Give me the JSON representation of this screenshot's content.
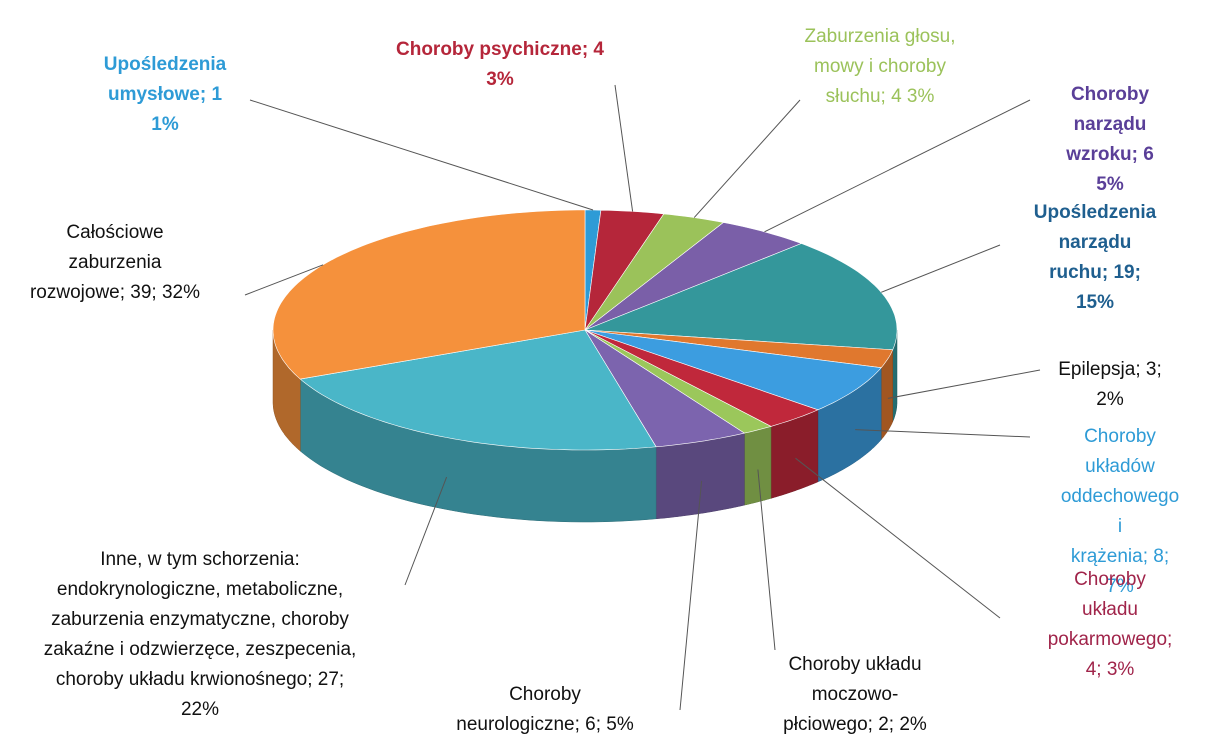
{
  "chart_data": {
    "type": "pie3d",
    "labels": [
      "Upośledzenia\numysłowe; 1\n1%",
      "Choroby psychiczne; 4\n3%",
      "Zaburzenia głosu,\nmowy i choroby\nsłuchu; 4 3%",
      "Choroby narządu\nwzroku; 6\n5%",
      "Upośledzenia\nnarządu ruchu; 19;\n15%",
      "Epilepsja; 3; 2%",
      "Choroby układów\noddechowego i\nkrążenia; 8; 7%",
      "Choroby układu\npokarmowego; 4; 3%",
      "Choroby układu\nmoczowo-\npłciowego; 2; 2%",
      "Choroby\nneurologiczne; 6; 5%",
      "Inne, w tym schorzenia:\nendokrynologiczne, metaboliczne,\nzaburzenia enzymatyczne, choroby\nzakaźne i odzwierzęce, zeszpecenia,\nchoroby układu krwionośnego; 27;\n22%",
      "Całościowe\nzaburzenia\nrozwojowe; 39; 32%"
    ],
    "values": [
      1,
      4,
      4,
      6,
      19,
      3,
      8,
      4,
      2,
      6,
      27,
      39
    ],
    "percents": [
      1,
      3,
      3,
      5,
      15,
      2,
      7,
      3,
      2,
      5,
      22,
      32
    ],
    "colors": [
      "#2e9bd6",
      "#b5263a",
      "#9bc25a",
      "#7a5fa8",
      "#34979b",
      "#e0782e",
      "#3c9de0",
      "#c0283b",
      "#9bc75b",
      "#7c64ae",
      "#4ab6c8",
      "#f5913c"
    ],
    "label_colors": [
      "#2e9bd6",
      "#b5263a",
      "#9bc25a",
      "#5a3f98",
      "#1f5f8f",
      "#111111",
      "#2e9bd6",
      "#a0244a",
      "#111111",
      "#111111",
      "#111111",
      "#111111"
    ],
    "label_bold": [
      true,
      true,
      false,
      true,
      true,
      false,
      false,
      false,
      false,
      false,
      false,
      false
    ]
  }
}
